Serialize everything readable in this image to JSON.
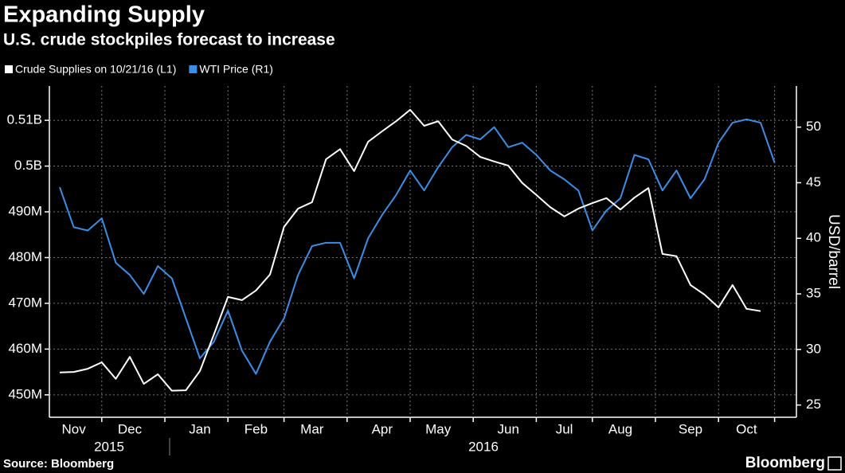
{
  "chart_data": {
    "type": "line",
    "title": "Expanding Supply",
    "subtitle": "U.S. crude stockpiles forecast to increase",
    "y2_label": "USD/barrel",
    "source": "Source: Bloomberg",
    "brand": "Bloomberg",
    "categories": [
      null,
      "Nov",
      null,
      null,
      null,
      "Dec",
      null,
      null,
      null,
      null,
      "Jan",
      null,
      null,
      null,
      "Feb",
      null,
      null,
      null,
      "Mar",
      null,
      null,
      null,
      null,
      "Apr",
      null,
      null,
      null,
      "May",
      null,
      null,
      null,
      null,
      "Jun",
      null,
      null,
      null,
      "Jul",
      null,
      null,
      null,
      "Aug",
      null,
      null,
      null,
      null,
      "Sep",
      null,
      null,
      null,
      "Oct",
      null,
      null
    ],
    "year_labels": [
      "2015",
      "2016"
    ],
    "series": [
      {
        "name": "Crude Supplies on 10/21/16 (L1)",
        "color": "#ffffff",
        "axis": "y",
        "values": [
          454.9,
          455.0,
          455.7,
          457.1,
          453.5,
          458.3,
          452.4,
          454.5,
          450.9,
          451.0,
          455.2,
          463.2,
          471.4,
          470.7,
          472.8,
          476.3,
          486.7,
          490.7,
          492.1,
          501.5,
          503.7,
          498.9,
          505.3,
          507.6,
          509.8,
          512.3,
          508.8,
          509.8,
          505.8,
          504.4,
          502.0,
          501.0,
          500.1,
          496.3,
          493.7,
          491.0,
          489.0,
          490.7,
          491.9,
          493.0,
          490.5,
          493.1,
          495.2,
          480.8,
          480.3,
          474.0,
          471.9,
          469.1,
          474.0,
          468.8,
          468.3,
          null
        ]
      },
      {
        "name": "WTI Price (R1)",
        "color": "#3a8ee6",
        "axis": "y2",
        "values": [
          44.6,
          41.0,
          40.7,
          41.8,
          37.8,
          36.7,
          35.0,
          37.5,
          36.4,
          32.8,
          29.2,
          30.7,
          33.5,
          29.9,
          27.8,
          30.7,
          32.8,
          36.7,
          39.3,
          39.6,
          39.6,
          36.4,
          40.0,
          42.1,
          43.9,
          46.1,
          44.3,
          46.4,
          48.2,
          49.3,
          48.9,
          50.0,
          48.2,
          48.6,
          47.5,
          46.1,
          45.3,
          44.3,
          40.7,
          42.5,
          43.6,
          47.5,
          47.1,
          44.3,
          46.1,
          43.6,
          45.3,
          48.6,
          50.4,
          50.7,
          50.4,
          46.8
        ]
      }
    ],
    "ylim": [
      445.1,
      517.5
    ],
    "yticks": [
      {
        "value": 450,
        "label": "450M"
      },
      {
        "value": 460,
        "label": "460M"
      },
      {
        "value": 470,
        "label": "470M"
      },
      {
        "value": 480,
        "label": "480M"
      },
      {
        "value": 490,
        "label": "490M"
      },
      {
        "value": 500,
        "label": "0.5B"
      },
      {
        "value": 510,
        "label": "0.51B"
      }
    ],
    "y2lim": [
      23.9,
      53.7
    ],
    "y2ticks": [
      25,
      30,
      35,
      40,
      45,
      50
    ],
    "grid": true
  }
}
